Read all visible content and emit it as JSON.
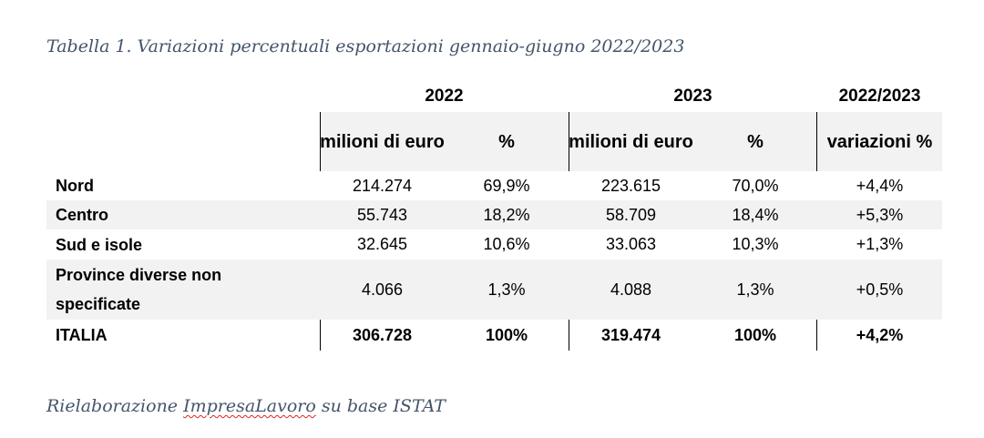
{
  "caption": "Tabella 1. Variazioni percentuali esportazioni gennaio-giugno 2022/2023",
  "headers": {
    "year_2022": "2022",
    "year_2023": "2023",
    "year_var": "2022/2023",
    "sub_2022_value": "milioni di euro",
    "sub_2022_pct": "%",
    "sub_2023_value": "milioni di euro",
    "sub_2023_pct": "%",
    "sub_var": "variazioni %"
  },
  "rows": [
    {
      "label": "Nord",
      "v2022": "214.274",
      "p2022": "69,9%",
      "v2023": "223.615",
      "p2023": "70,0%",
      "var": "+4,4%"
    },
    {
      "label": "Centro",
      "v2022": "55.743",
      "p2022": "18,2%",
      "v2023": "58.709",
      "p2023": "18,4%",
      "var": "+5,3%"
    },
    {
      "label": "Sud e isole",
      "v2022": "32.645",
      "p2022": "10,6%",
      "v2023": "33.063",
      "p2023": "10,3%",
      "var": "+1,3%"
    },
    {
      "label": "Province diverse non specificate",
      "v2022": "4.066",
      "p2022": "1,3%",
      "v2023": "4.088",
      "p2023": "1,3%",
      "var": "+0,5%"
    },
    {
      "label": "ITALIA",
      "v2022": "306.728",
      "p2022": "100%",
      "v2023": "319.474",
      "p2023": "100%",
      "var": "+4,2%"
    }
  ],
  "source": {
    "prefix": "Rielaborazione ",
    "name": "ImpresaLavoro",
    "suffix": " su base ISTAT"
  }
}
